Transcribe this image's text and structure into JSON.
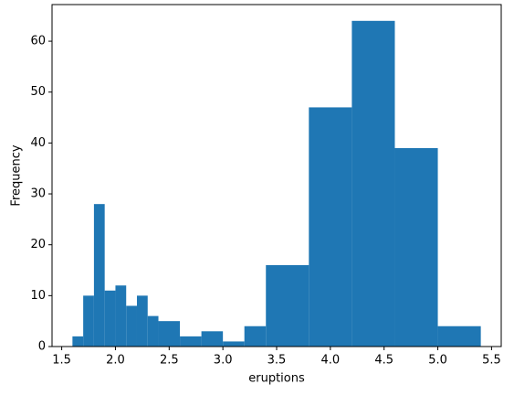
{
  "chart_data": {
    "type": "histogram",
    "xlabel": "eruptions",
    "ylabel": "Frequency",
    "color": "#1f77b4",
    "bins": [
      1.6,
      1.7,
      1.8,
      1.9,
      2.0,
      2.1,
      2.2,
      2.3,
      2.4,
      2.6,
      2.8,
      3.0,
      3.2,
      3.4,
      3.8,
      4.2,
      4.6,
      5.0,
      5.4
    ],
    "values": [
      2,
      10,
      28,
      11,
      12,
      8,
      10,
      6,
      5,
      2,
      3,
      1,
      4,
      16,
      47,
      64,
      39,
      4
    ],
    "xlim": [
      1.41,
      5.59
    ],
    "xticks": [
      1.5,
      {
        "value": 2,
        "label": "2.0"
      },
      2.5,
      {
        "value": 3,
        "label": "3.0"
      },
      3.5,
      {
        "value": 4,
        "label": "4.0"
      },
      4.5,
      {
        "value": 5,
        "label": "5.0"
      },
      5.5
    ],
    "ylim": [
      0,
      67.2
    ],
    "yticks": [
      0,
      10,
      20,
      30,
      40,
      50,
      60
    ]
  }
}
